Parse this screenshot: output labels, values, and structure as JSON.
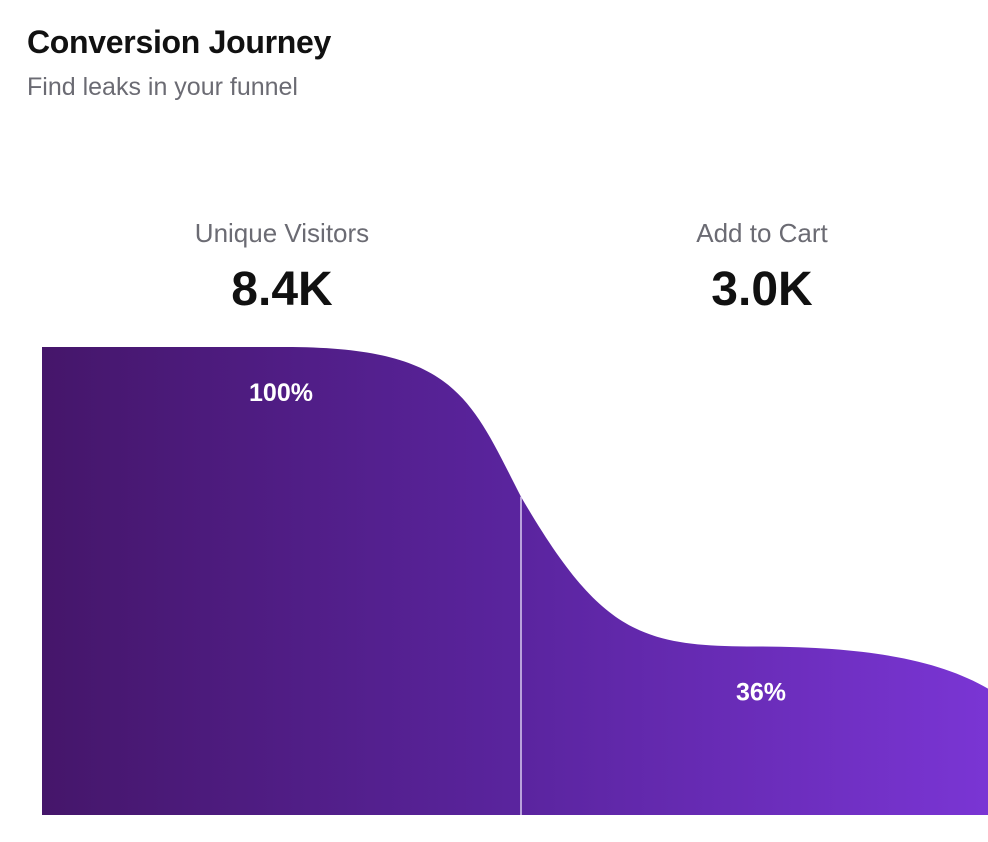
{
  "header": {
    "title": "Conversion Journey",
    "subtitle": "Find leaks in your funnel"
  },
  "chart_data": {
    "type": "area",
    "title": "Conversion Journey",
    "subtitle": "Find leaks in your funnel",
    "stages": [
      {
        "name": "Unique Visitors",
        "value_label": "8.4K",
        "value": 8400,
        "percent": 100,
        "percent_label": "100%"
      },
      {
        "name": "Add to Cart",
        "value_label": "3.0K",
        "value": 3000,
        "percent": 36,
        "percent_label": "36%"
      }
    ],
    "end_percent": 27,
    "colors": {
      "start": "#45166a",
      "mid": "#5a249e",
      "end": "#7a35d4",
      "divider": "#d9ccf0"
    },
    "grid": false,
    "legend": "none"
  }
}
